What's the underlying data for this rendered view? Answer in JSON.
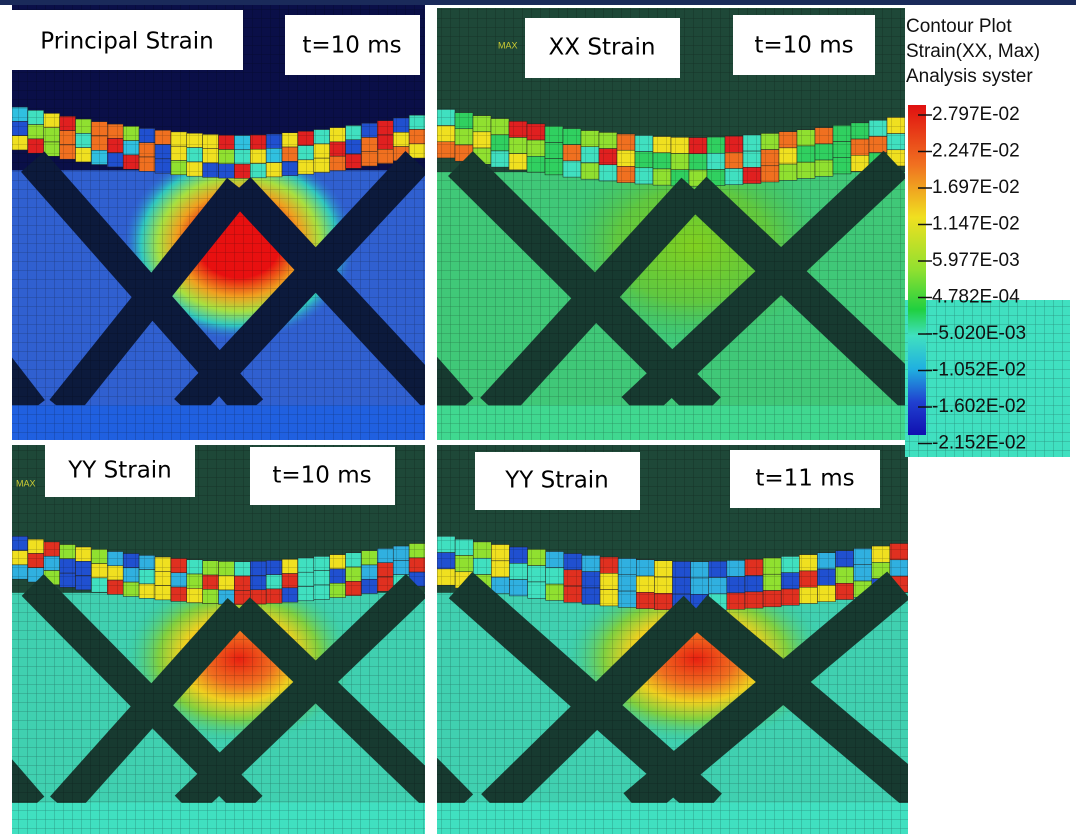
{
  "panels": [
    {
      "label": "Principal Strain",
      "time": "t=10 ms"
    },
    {
      "label": "XX Strain",
      "time": "t=10 ms",
      "marker": "MAX"
    },
    {
      "label": "YY Strain",
      "time": "t=10 ms",
      "marker": "MAX"
    },
    {
      "label": "YY Strain",
      "time": "t=11 ms"
    }
  ],
  "legend": {
    "title": [
      "Contour Plot",
      "Strain(XX, Max)",
      "Analysis syster"
    ],
    "levels": [
      "2.797E-02",
      "2.247E-02",
      "1.697E-02",
      "1.147E-02",
      "5.977E-03",
      "4.782E-04",
      "-5.020E-03",
      "-1.052E-02",
      "-1.602E-02",
      "-2.152E-02"
    ]
  }
}
